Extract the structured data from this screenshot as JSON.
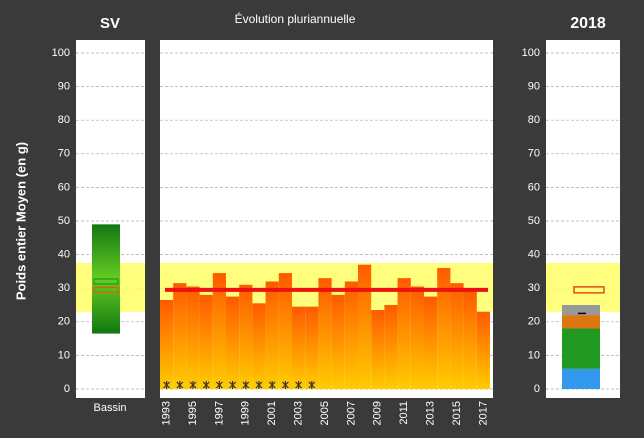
{
  "chart_data": [
    {
      "type": "range",
      "title": "SV",
      "ylabel": "Poids entier Moyen (en g)",
      "categories": [
        "Bassin"
      ],
      "range": [
        16.5,
        49
      ],
      "markers": [
        {
          "value": 32,
          "color": "#1e9e1e"
        },
        {
          "value": 29.5,
          "color": "#e0600a"
        }
      ],
      "band": [
        23,
        37.5
      ],
      "band_color": "#ffff66",
      "ylim": [
        0,
        100
      ],
      "yticks": [
        0,
        10,
        20,
        30,
        40,
        50,
        60,
        70,
        80,
        90,
        100
      ],
      "grid": true
    },
    {
      "type": "bar",
      "title": "Évolution pluriannuelle",
      "categories": [
        "1993",
        null,
        "1995",
        null,
        "1997",
        null,
        "1999",
        null,
        "2001",
        null,
        "2003",
        null,
        "2005",
        null,
        "2007",
        null,
        "2009",
        null,
        "2011",
        null,
        "2013",
        null,
        "2015",
        null,
        "2017"
      ],
      "values": [
        26.5,
        31.5,
        30.5,
        28,
        34.5,
        27.5,
        31,
        25.5,
        32,
        34.5,
        24.5,
        24.5,
        33,
        28,
        32,
        37,
        23.5,
        25,
        33,
        30.5,
        27.5,
        36,
        31.5,
        29.5,
        23
      ],
      "flagged": [
        true,
        true,
        true,
        true,
        true,
        true,
        true,
        true,
        true,
        true,
        true,
        true,
        false,
        false,
        false,
        false,
        false,
        false,
        false,
        false,
        false,
        false,
        false,
        false,
        false
      ],
      "mean": 29.5,
      "mean_color": "#ee1111",
      "band": [
        23,
        37.5
      ],
      "band_color": "#ffff66",
      "ylim": [
        0,
        100
      ],
      "yticks": [
        0,
        10,
        20,
        30,
        40,
        50,
        60,
        70,
        80,
        90,
        100
      ],
      "grid": true
    },
    {
      "type": "stack",
      "title": "2018",
      "segments": [
        {
          "values": 6,
          "color": "#3399ee"
        },
        {
          "values": 12,
          "color": "#229922"
        },
        {
          "values": 4,
          "color": "#dd7711"
        },
        {
          "values": 3,
          "color": "#999999"
        }
      ],
      "marker": 22.5,
      "box": 29.5,
      "box_color": "#e0300a",
      "band": [
        23,
        37.5
      ],
      "band_color": "#ffff66",
      "ylim": [
        0,
        100
      ],
      "yticks": [
        0,
        10,
        20,
        30,
        40,
        50,
        60,
        70,
        80,
        90,
        100
      ],
      "grid": true
    }
  ]
}
